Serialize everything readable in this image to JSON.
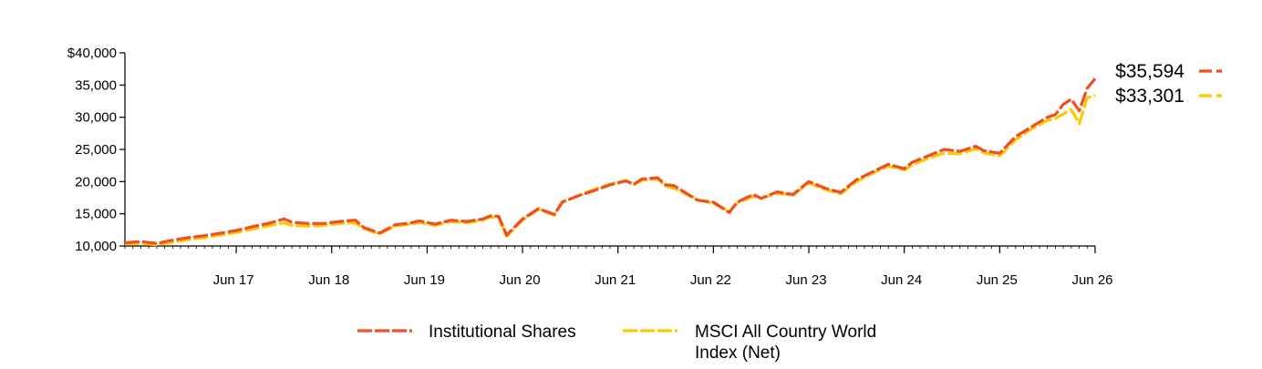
{
  "chart_data": {
    "type": "line",
    "title": "",
    "xlabel": "",
    "ylabel": "",
    "ylim": [
      10000,
      40000
    ],
    "y_ticks": [
      10000,
      15000,
      20000,
      25000,
      30000,
      35000,
      40000
    ],
    "y_tick_labels": [
      "10,000",
      "15,000",
      "20,000",
      "25,000",
      "30,000",
      "35,000",
      "$40,000"
    ],
    "x_range": [
      "2016-04",
      "2026-06"
    ],
    "x_ticks": [
      "2017-06",
      "2018-06",
      "2019-06",
      "2020-06",
      "2021-06",
      "2022-06",
      "2023-06",
      "2024-06",
      "2025-06",
      "2026-06"
    ],
    "x_tick_labels": [
      "Jun 17",
      "Jun 18",
      "Jun 19",
      "Jun 20",
      "Jun 21",
      "Jun 22",
      "Jun 23",
      "Jun 24",
      "Jun 25",
      "Jun 26"
    ],
    "legend_position": "bottom",
    "grid": false,
    "series": [
      {
        "name": "Institutional Shares",
        "color": "#F04E23",
        "end_label": "$35,594",
        "x": [
          "2016-04",
          "2016-06",
          "2016-08",
          "2016-10",
          "2016-12",
          "2017-02",
          "2017-04",
          "2017-06",
          "2017-08",
          "2017-10",
          "2017-12",
          "2018-01",
          "2018-03",
          "2018-05",
          "2018-07",
          "2018-09",
          "2018-10",
          "2018-12",
          "2019-02",
          "2019-04",
          "2019-05",
          "2019-07",
          "2019-09",
          "2019-11",
          "2020-01",
          "2020-02",
          "2020-03",
          "2020-04",
          "2020-06",
          "2020-08",
          "2020-10",
          "2020-11",
          "2021-01",
          "2021-03",
          "2021-05",
          "2021-07",
          "2021-08",
          "2021-09",
          "2021-11",
          "2021-12",
          "2022-01",
          "2022-03",
          "2022-04",
          "2022-06",
          "2022-08",
          "2022-09",
          "2022-11",
          "2022-12",
          "2023-02",
          "2023-04",
          "2023-06",
          "2023-08",
          "2023-10",
          "2023-12",
          "2024-02",
          "2024-04",
          "2024-06",
          "2024-07",
          "2024-09",
          "2024-11",
          "2025-01",
          "2025-03",
          "2025-04",
          "2025-06",
          "2025-08",
          "2025-10",
          "2025-12",
          "2026-01",
          "2026-02",
          "2026-03",
          "2026-04",
          "2026-05",
          "2026-06"
        ],
        "values": [
          10500,
          10700,
          10400,
          10900,
          11300,
          11600,
          12000,
          12400,
          13000,
          13500,
          14200,
          13700,
          13500,
          13500,
          13800,
          14000,
          12900,
          12000,
          13300,
          13600,
          13900,
          13400,
          14000,
          13800,
          14200,
          14700,
          14600,
          11700,
          14200,
          15800,
          14900,
          16800,
          17800,
          18600,
          19500,
          20100,
          19600,
          20400,
          20600,
          19500,
          19400,
          17900,
          17100,
          16800,
          15200,
          16800,
          18000,
          17400,
          18400,
          18000,
          20000,
          19000,
          18300,
          20300,
          21500,
          22700,
          22000,
          23000,
          24000,
          25000,
          24700,
          25500,
          24800,
          24400,
          27000,
          28500,
          30000,
          30400,
          32000,
          32800,
          31000,
          34500,
          36000
        ]
      },
      {
        "name": "MSCI All Country World Index (Net)",
        "color": "#FFC800",
        "end_label": "$33,301",
        "x": [
          "2016-04",
          "2016-06",
          "2016-08",
          "2016-10",
          "2016-12",
          "2017-02",
          "2017-04",
          "2017-06",
          "2017-08",
          "2017-10",
          "2017-12",
          "2018-01",
          "2018-03",
          "2018-05",
          "2018-07",
          "2018-09",
          "2018-10",
          "2018-12",
          "2019-02",
          "2019-04",
          "2019-05",
          "2019-07",
          "2019-09",
          "2019-11",
          "2020-01",
          "2020-02",
          "2020-03",
          "2020-04",
          "2020-06",
          "2020-08",
          "2020-10",
          "2020-11",
          "2021-01",
          "2021-03",
          "2021-05",
          "2021-07",
          "2021-08",
          "2021-09",
          "2021-11",
          "2021-12",
          "2022-01",
          "2022-03",
          "2022-04",
          "2022-06",
          "2022-08",
          "2022-09",
          "2022-11",
          "2022-12",
          "2023-02",
          "2023-04",
          "2023-06",
          "2023-08",
          "2023-10",
          "2023-12",
          "2024-02",
          "2024-04",
          "2024-06",
          "2024-07",
          "2024-09",
          "2024-11",
          "2025-01",
          "2025-03",
          "2025-04",
          "2025-06",
          "2025-08",
          "2025-10",
          "2025-12",
          "2026-01",
          "2026-02",
          "2026-03",
          "2026-04",
          "2026-05",
          "2026-06"
        ],
        "values": [
          10300,
          10400,
          10200,
          10600,
          11000,
          11300,
          11700,
          12100,
          12600,
          13100,
          13600,
          13200,
          13100,
          13200,
          13500,
          13600,
          12700,
          11900,
          13100,
          13400,
          13700,
          13200,
          13800,
          13600,
          14000,
          14500,
          14400,
          11500,
          14000,
          15700,
          14800,
          16900,
          17800,
          18800,
          19600,
          20200,
          19500,
          20200,
          20400,
          19300,
          19000,
          17800,
          17200,
          16600,
          15400,
          16700,
          17700,
          17400,
          18200,
          17900,
          19800,
          18800,
          18100,
          20000,
          21300,
          22400,
          21800,
          22600,
          23600,
          24400,
          24300,
          25100,
          24500,
          24000,
          26500,
          28200,
          29500,
          29800,
          30500,
          31200,
          29000,
          33000,
          33400
        ]
      }
    ]
  }
}
